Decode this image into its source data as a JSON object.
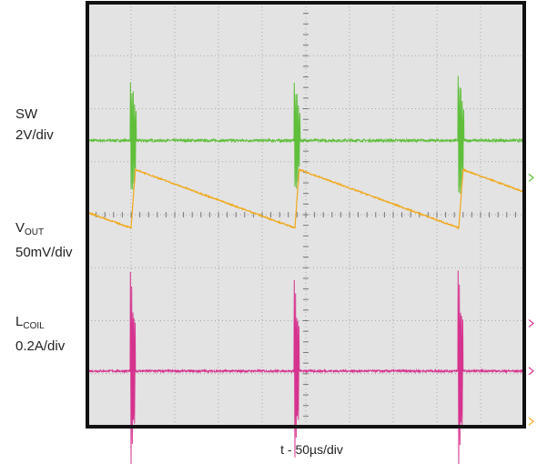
{
  "labels": {
    "sw_name": "SW",
    "sw_scale": "2V/div",
    "vout_main": "V",
    "vout_sub": "OUT",
    "vout_scale": "50mV/div",
    "lcoil_main": "L",
    "lcoil_sub": "COIL",
    "lcoil_scale": "0.2A/div",
    "xaxis": "t - 50µs/div"
  },
  "colors": {
    "sw": "#5fbf3a",
    "vout": "#f0a818",
    "lcoil": "#d6338f",
    "screen": "#e3e3e3",
    "grid": "#a8a8a8",
    "frame": "#111111"
  },
  "chart_data": {
    "type": "line",
    "title": "",
    "xlabel": "t - 50µs/div",
    "grid": true,
    "x_divisions": 10,
    "y_divisions": 8,
    "x_unit": "div (50µs/div)",
    "switching_events_div": [
      1.0,
      4.75,
      8.5
    ],
    "series": [
      {
        "name": "SW",
        "scale": "2V/div",
        "baseline_div": 5.4,
        "pulses": [
          {
            "x_div": 1.0,
            "spike_amplitude_div": 1.25
          },
          {
            "x_div": 4.75,
            "spike_amplitude_div": 1.2
          },
          {
            "x_div": 8.5,
            "spike_amplitude_div": 1.35
          }
        ]
      },
      {
        "name": "VOUT",
        "scale": "50mV/div",
        "waveform": "sawtooth",
        "low_div": 3.75,
        "high_div": 4.85,
        "period_div": 3.75,
        "rise_time_div": 0.1
      },
      {
        "name": "LCOIL",
        "scale": "0.2A/div",
        "baseline_div": 1.05,
        "pulses": [
          {
            "x_div": 1.0,
            "spike_amplitude_div": 1.95
          },
          {
            "x_div": 4.75,
            "spike_amplitude_div": 1.8
          },
          {
            "x_div": 8.5,
            "spike_amplitude_div": 2.0
          }
        ]
      }
    ]
  }
}
